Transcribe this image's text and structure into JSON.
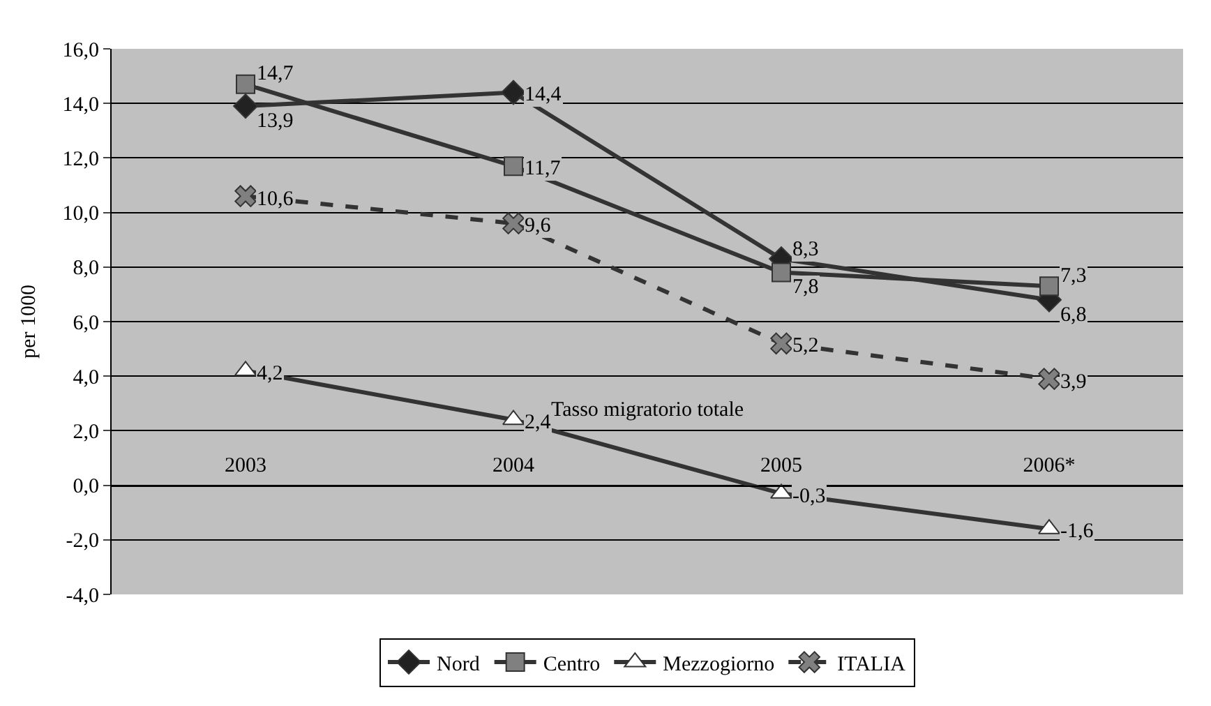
{
  "chart_data": {
    "type": "line",
    "ylabel": "per 1000",
    "xlabel": "Tasso migratorio totale",
    "categories": [
      "2003",
      "2004",
      "2005",
      "2006*"
    ],
    "series": [
      {
        "name": "Nord",
        "color": "#222222",
        "marker": "diamond",
        "line_style": "solid",
        "values": [
          13.9,
          14.4,
          8.3,
          6.8
        ],
        "value_labels": [
          "13,9",
          "14,4",
          "8,3",
          "6,8"
        ]
      },
      {
        "name": "Centro",
        "color": "#808080",
        "marker": "square",
        "line_style": "solid",
        "values": [
          14.7,
          11.7,
          7.8,
          7.3
        ],
        "value_labels": [
          "14,7",
          "11,7",
          "7,8",
          "7,3"
        ]
      },
      {
        "name": "Mezzogiorno",
        "color": "#ffffff",
        "marker": "triangle",
        "line_style": "solid",
        "values": [
          4.2,
          2.4,
          -0.3,
          -1.6
        ],
        "value_labels": [
          "4,2",
          "2,4",
          "-0,3",
          "-1,6"
        ]
      },
      {
        "name": "ITALIA",
        "color": "#808080",
        "marker": "cross",
        "line_style": "dashed",
        "values": [
          10.6,
          9.6,
          5.2,
          3.9
        ],
        "value_labels": [
          "10,6",
          "9,6",
          "5,2",
          "3,9"
        ]
      }
    ],
    "ylim": [
      -4,
      16
    ],
    "yticks": [
      {
        "value": -4,
        "label": "-4,0"
      },
      {
        "value": -2,
        "label": "-2,0"
      },
      {
        "value": 0,
        "label": "0,0"
      },
      {
        "value": 2,
        "label": "2,0"
      },
      {
        "value": 4,
        "label": "4,0"
      },
      {
        "value": 6,
        "label": "6,0"
      },
      {
        "value": 8,
        "label": "8,0"
      },
      {
        "value": 10,
        "label": "10,0"
      },
      {
        "value": 12,
        "label": "12,0"
      },
      {
        "value": 14,
        "label": "14,0"
      },
      {
        "value": 16,
        "label": "16,0"
      }
    ],
    "grid": "y",
    "legend": "bottom"
  }
}
